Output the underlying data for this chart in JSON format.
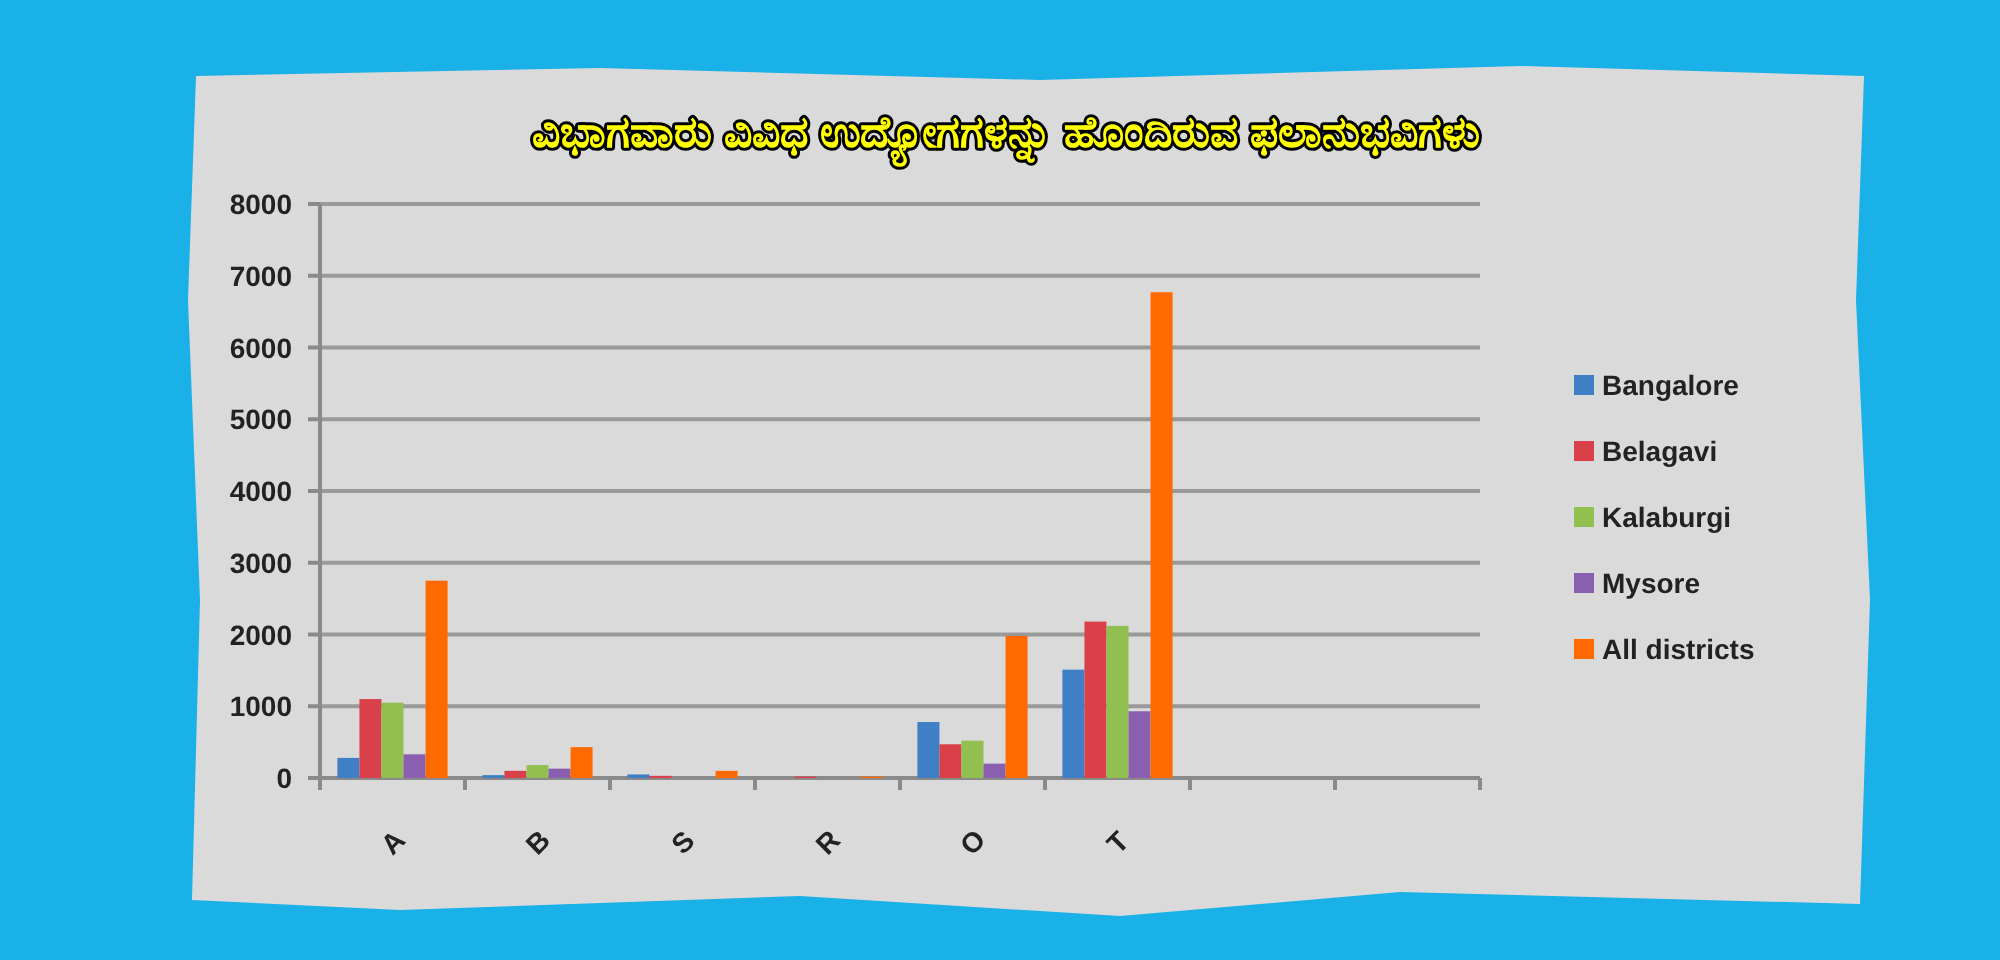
{
  "chart_data": {
    "type": "bar",
    "title": "ವಿಭಾಗವಾರು ವಿವಿಧ ಉದ್ಯೋಗಗಳನ್ನು ಹೊಂದಿರುವ ಫಲಾನುಭವಿಗಳು",
    "categories": [
      "A",
      "B",
      "S",
      "R",
      "O",
      "T",
      null,
      null
    ],
    "series": [
      {
        "name": "Bangalore",
        "color": "#3f7fc6",
        "values": [
          280,
          40,
          50,
          0,
          780,
          1510,
          null,
          null
        ]
      },
      {
        "name": "Belagavi",
        "color": "#d9404a",
        "values": [
          1100,
          100,
          30,
          20,
          470,
          2180,
          null,
          null
        ]
      },
      {
        "name": "Kalaburgi",
        "color": "#92c050",
        "values": [
          1050,
          180,
          0,
          0,
          520,
          2120,
          null,
          null
        ]
      },
      {
        "name": "Mysore",
        "color": "#8a5fb0",
        "values": [
          330,
          130,
          0,
          0,
          200,
          930,
          null,
          null
        ]
      },
      {
        "name": "All districts",
        "color": "#ff6a00",
        "values": [
          2750,
          430,
          100,
          20,
          1980,
          6770,
          null,
          null
        ]
      }
    ],
    "ylim": [
      0,
      8000
    ],
    "yticks": [
      0,
      1000,
      2000,
      3000,
      4000,
      5000,
      6000,
      7000,
      8000
    ],
    "grid": "y",
    "legend": "right"
  }
}
